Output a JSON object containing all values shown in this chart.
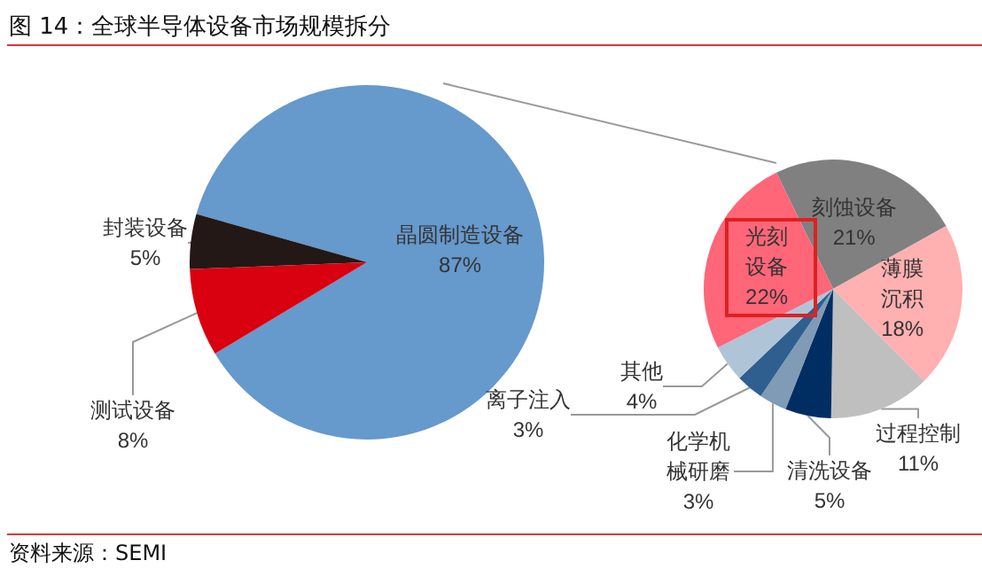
{
  "chart_data": [
    {
      "type": "pie",
      "title": "图 14：全球半导体设备市场规模拆分",
      "annotations": [
        "资料来源：SEMI"
      ],
      "categories": [
        "晶圆制造设备",
        "封装设备",
        "测试设备"
      ],
      "values": [
        87,
        5,
        8
      ],
      "colors": [
        "#6699cc",
        "#231815",
        "#d9000f"
      ],
      "value_labels": [
        "87%",
        "5%",
        "8%"
      ],
      "legend": false
    },
    {
      "type": "pie",
      "categories": [
        "刻蚀设备",
        "薄膜沉积",
        "过程控制",
        "清洗设备",
        "化学机械研磨",
        "离子注入",
        "其他",
        "光刻设备"
      ],
      "values": [
        21,
        18,
        11,
        5,
        3,
        3,
        4,
        22
      ],
      "colors": [
        "#808080",
        "#ffb0b0",
        "#bfbfbf",
        "#002e63",
        "#7f9bb5",
        "#2f5f8f",
        "#b0c4d8",
        "#ff6678"
      ],
      "value_labels": [
        "21%",
        "18%",
        "11%",
        "5%",
        "3%",
        "3%",
        "4%",
        "22%"
      ],
      "legend": false
    }
  ]
}
